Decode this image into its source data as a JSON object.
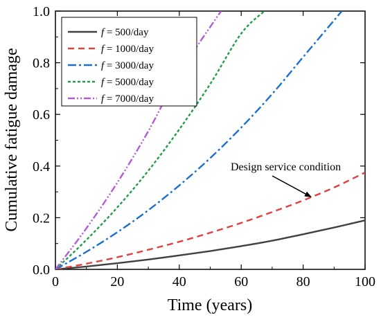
{
  "chart_data": {
    "type": "line",
    "title": "",
    "xlabel": "Time (years)",
    "ylabel": "Cumulative fatigue damage",
    "xlim": [
      0,
      100
    ],
    "ylim": [
      0,
      1.0
    ],
    "x_ticks": [
      0,
      20,
      40,
      60,
      80,
      100
    ],
    "y_ticks": [
      0.0,
      0.2,
      0.4,
      0.6,
      0.8,
      1.0
    ],
    "x_tick_labels": [
      "0",
      "20",
      "40",
      "60",
      "80",
      "100"
    ],
    "y_tick_labels": [
      "0.0",
      "0.2",
      "0.4",
      "0.6",
      "0.8",
      "1.0"
    ],
    "grid": false,
    "legend_position": "top-left",
    "series": [
      {
        "name": "f = 500/day",
        "legend_var": "f",
        "legend_rest": " = 500/day",
        "color": "#404040",
        "dash": "solid",
        "x": [
          0,
          10,
          20,
          30,
          40,
          50,
          60,
          70,
          80,
          90,
          100
        ],
        "y": [
          0,
          0.011,
          0.024,
          0.038,
          0.054,
          0.071,
          0.09,
          0.111,
          0.136,
          0.162,
          0.19
        ]
      },
      {
        "name": "f = 1000/day",
        "legend_var": "f",
        "legend_rest": " = 1000/day",
        "color": "#e04040",
        "dash": "dash",
        "x": [
          0,
          10,
          20,
          30,
          40,
          50,
          60,
          70,
          80,
          90,
          100
        ],
        "y": [
          0,
          0.022,
          0.047,
          0.076,
          0.107,
          0.142,
          0.18,
          0.222,
          0.267,
          0.317,
          0.375
        ]
      },
      {
        "name": "f = 3000/day",
        "legend_var": "f",
        "legend_rest": " = 3000/day",
        "color": "#1a6fd0",
        "dash": "dashdot",
        "x": [
          0,
          10,
          20,
          30,
          40,
          50,
          60,
          70,
          80,
          92.5
        ],
        "y": [
          0,
          0.068,
          0.144,
          0.229,
          0.325,
          0.431,
          0.549,
          0.679,
          0.822,
          1.0
        ]
      },
      {
        "name": "f = 5000/day",
        "legend_var": "f",
        "legend_rest": " = 5000/day",
        "color": "#1f9e48",
        "dash": "dot",
        "x": [
          0,
          10,
          20,
          30,
          40,
          50,
          60,
          67.5
        ],
        "y": [
          0,
          0.114,
          0.24,
          0.382,
          0.542,
          0.718,
          0.913,
          1.0
        ]
      },
      {
        "name": "f = 7000/day",
        "legend_var": "f",
        "legend_rest": " = 7000/day",
        "color": "#b45ad6",
        "dash": "dashdotdot",
        "x": [
          0,
          10,
          20,
          30,
          40,
          53.5
        ],
        "y": [
          0,
          0.159,
          0.336,
          0.535,
          0.758,
          1.0
        ]
      }
    ],
    "annotations": [
      {
        "text": "Design service condition",
        "arrow_to_x": 83,
        "arrow_to_y": 0.27
      }
    ]
  }
}
